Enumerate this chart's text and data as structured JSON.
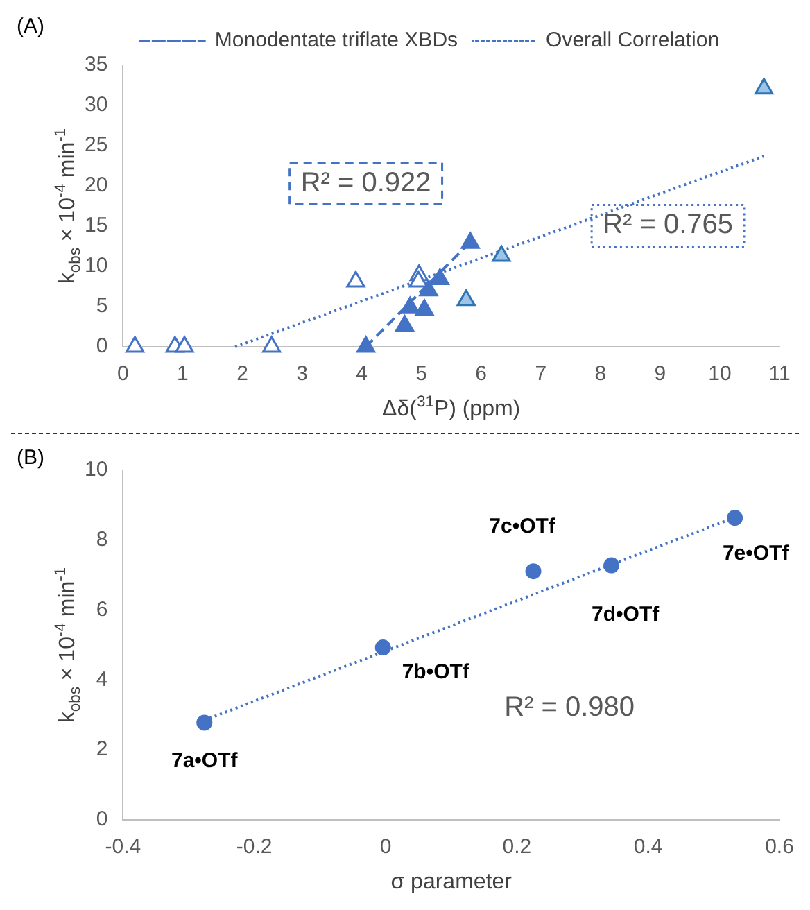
{
  "chart_data": [
    {
      "type": "scatter",
      "title": "(A)",
      "xlabel": "Δδ($^{31}$P) (ppm)",
      "ylabel": "k$_{obs}$ × 10$^{-4}$ min$^{-1}$",
      "xlim": [
        0,
        11
      ],
      "xticks": [
        0,
        1,
        2,
        3,
        4,
        5,
        6,
        7,
        8,
        9,
        10,
        11
      ],
      "ylim": [
        0,
        35
      ],
      "yticks": [
        0,
        5,
        10,
        15,
        20,
        25,
        30,
        35
      ],
      "grid": false,
      "legend": "top",
      "series": [
        {
          "type": "scatter",
          "marker": "triangle",
          "color": "#4472c4",
          "x": [
            0.2,
            0.87,
            1.03,
            2.49,
            3.9,
            4.96,
            4.95
          ],
          "values": [
            0,
            0,
            0,
            0,
            8.1,
            8.9,
            8.1
          ]
        },
        {
          "type": "scatter",
          "marker": "triangle",
          "color": "#4472c4",
          "x": [
            4.07,
            4.72,
            4.81,
            5.05,
            5.12,
            5.31,
            5.82
          ],
          "values": [
            0,
            2.6,
            4.9,
            4.6,
            7.0,
            8.4,
            12.9
          ]
        },
        {
          "type": "scatter",
          "marker": "triangle",
          "color": "#2e75b6",
          "x": [
            5.75,
            6.34,
            10.74
          ],
          "values": [
            5.8,
            11.3,
            32.1
          ]
        },
        {
          "type": "line",
          "name": "Monodentate triflate XBDs",
          "color": "#4472c4",
          "line_style": "dashed",
          "x": [
            4.07,
            5.75
          ],
          "values": [
            0,
            12.5
          ]
        },
        {
          "type": "line",
          "name": "Overall Correlation",
          "color": "#4472c4",
          "line_style": "dotted",
          "x": [
            1.88,
            10.74
          ],
          "values": [
            0,
            23.7
          ]
        }
      ],
      "annotations": [
        "R² = 0.922",
        "R² = 0.765"
      ]
    },
    {
      "type": "scatter",
      "title": "(B)",
      "xlabel": "σ parameter",
      "ylabel": "k$_{obs}$ × 10$^{-4}$ min$^{-1}$",
      "xlim": [
        -0.4,
        0.6
      ],
      "xticks": [
        -0.4,
        -0.2,
        0,
        0.2,
        0.4,
        0.6
      ],
      "ylim": [
        0,
        10
      ],
      "yticks": [
        0,
        2,
        4,
        6,
        8,
        10
      ],
      "grid": false,
      "legend": false,
      "series": [
        {
          "type": "scatter",
          "marker": "circle",
          "color": "#4472c4",
          "x": [
            -0.276,
            -0.004,
            0.225,
            0.344,
            0.532
          ],
          "values": [
            2.78,
            4.93,
            7.11,
            7.28,
            8.64
          ]
        },
        {
          "type": "line",
          "color": "#4472c4",
          "line_style": "dotted",
          "x": [
            -0.276,
            0.532
          ],
          "values": [
            2.85,
            8.65
          ]
        }
      ],
      "annotations": [
        {
          "text": "7a•OTf",
          "x": -0.276,
          "y": 2.78
        },
        {
          "text": "7b•OTf",
          "x": -0.004,
          "y": 4.93
        },
        {
          "text": "7c•OTf",
          "x": 0.225,
          "y": 7.11
        },
        {
          "text": "7d•OTf",
          "x": 0.344,
          "y": 7.28
        },
        {
          "text": "7e•OTf",
          "x": 0.532,
          "y": 8.64
        },
        "R² = 0.980"
      ]
    }
  ]
}
